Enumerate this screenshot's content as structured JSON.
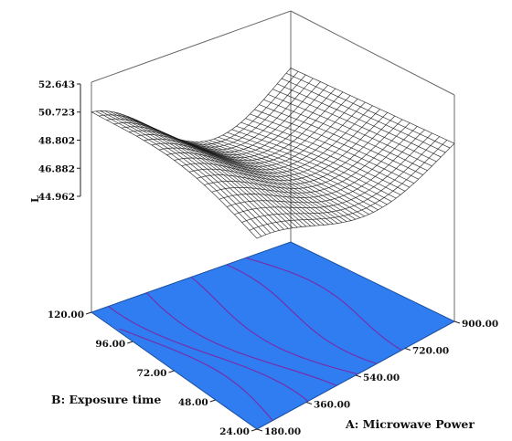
{
  "chart_data": {
    "type": "surface3d",
    "title": "",
    "zlabel": "L",
    "xlabel": "A: Microwave Power",
    "ylabel": "B: Exposure time",
    "x_ticks": [
      "180.00",
      "360.00",
      "540.00",
      "720.00",
      "900.00"
    ],
    "y_ticks": [
      "24.00",
      "48.00",
      "72.00",
      "96.00",
      "120.00"
    ],
    "z_ticks": [
      "44.962",
      "46.882",
      "48.802",
      "50.723",
      "52.643"
    ],
    "xlim": [
      180,
      900
    ],
    "ylim": [
      24,
      120
    ],
    "zlim": [
      44.962,
      52.643
    ],
    "grid": false,
    "legend": "none",
    "base_color": "#2f7df0",
    "contour_color": "#7a2aa8",
    "mesh_color": "#1a1a1a"
  }
}
